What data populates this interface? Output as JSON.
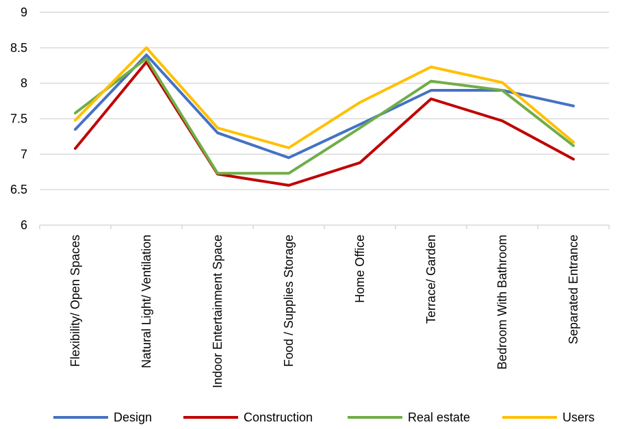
{
  "chart_data": {
    "type": "line",
    "title": "",
    "xlabel": "",
    "ylabel": "",
    "ylim": [
      6,
      9
    ],
    "yticks": [
      "6",
      "6.5",
      "7",
      "7.5",
      "8",
      "8.5",
      "9"
    ],
    "grid": true,
    "legend_position": "bottom",
    "categories": [
      "Flexibility/ Open Spaces",
      "Natural Light/ Ventilation",
      "Indoor Entertainment Space",
      "Food / Supplies Storage",
      "Home Office",
      "Terrace/ Garden",
      "Bedroom With Bathroom",
      "Separated Entrance"
    ],
    "series": [
      {
        "name": "Design",
        "color": "#4472C4",
        "values": [
          7.35,
          8.4,
          7.3,
          6.95,
          7.42,
          7.9,
          7.9,
          7.68
        ]
      },
      {
        "name": "Construction",
        "color": "#C00000",
        "values": [
          7.08,
          8.3,
          6.72,
          6.56,
          6.88,
          7.78,
          7.47,
          6.93
        ]
      },
      {
        "name": "Real estate",
        "color": "#70AD47",
        "values": [
          7.58,
          8.35,
          6.73,
          6.73,
          7.37,
          8.03,
          7.9,
          7.12
        ]
      },
      {
        "name": "Users",
        "color": "#FFC000",
        "values": [
          7.48,
          8.5,
          7.37,
          7.09,
          7.73,
          8.23,
          8.01,
          7.17
        ]
      }
    ]
  }
}
